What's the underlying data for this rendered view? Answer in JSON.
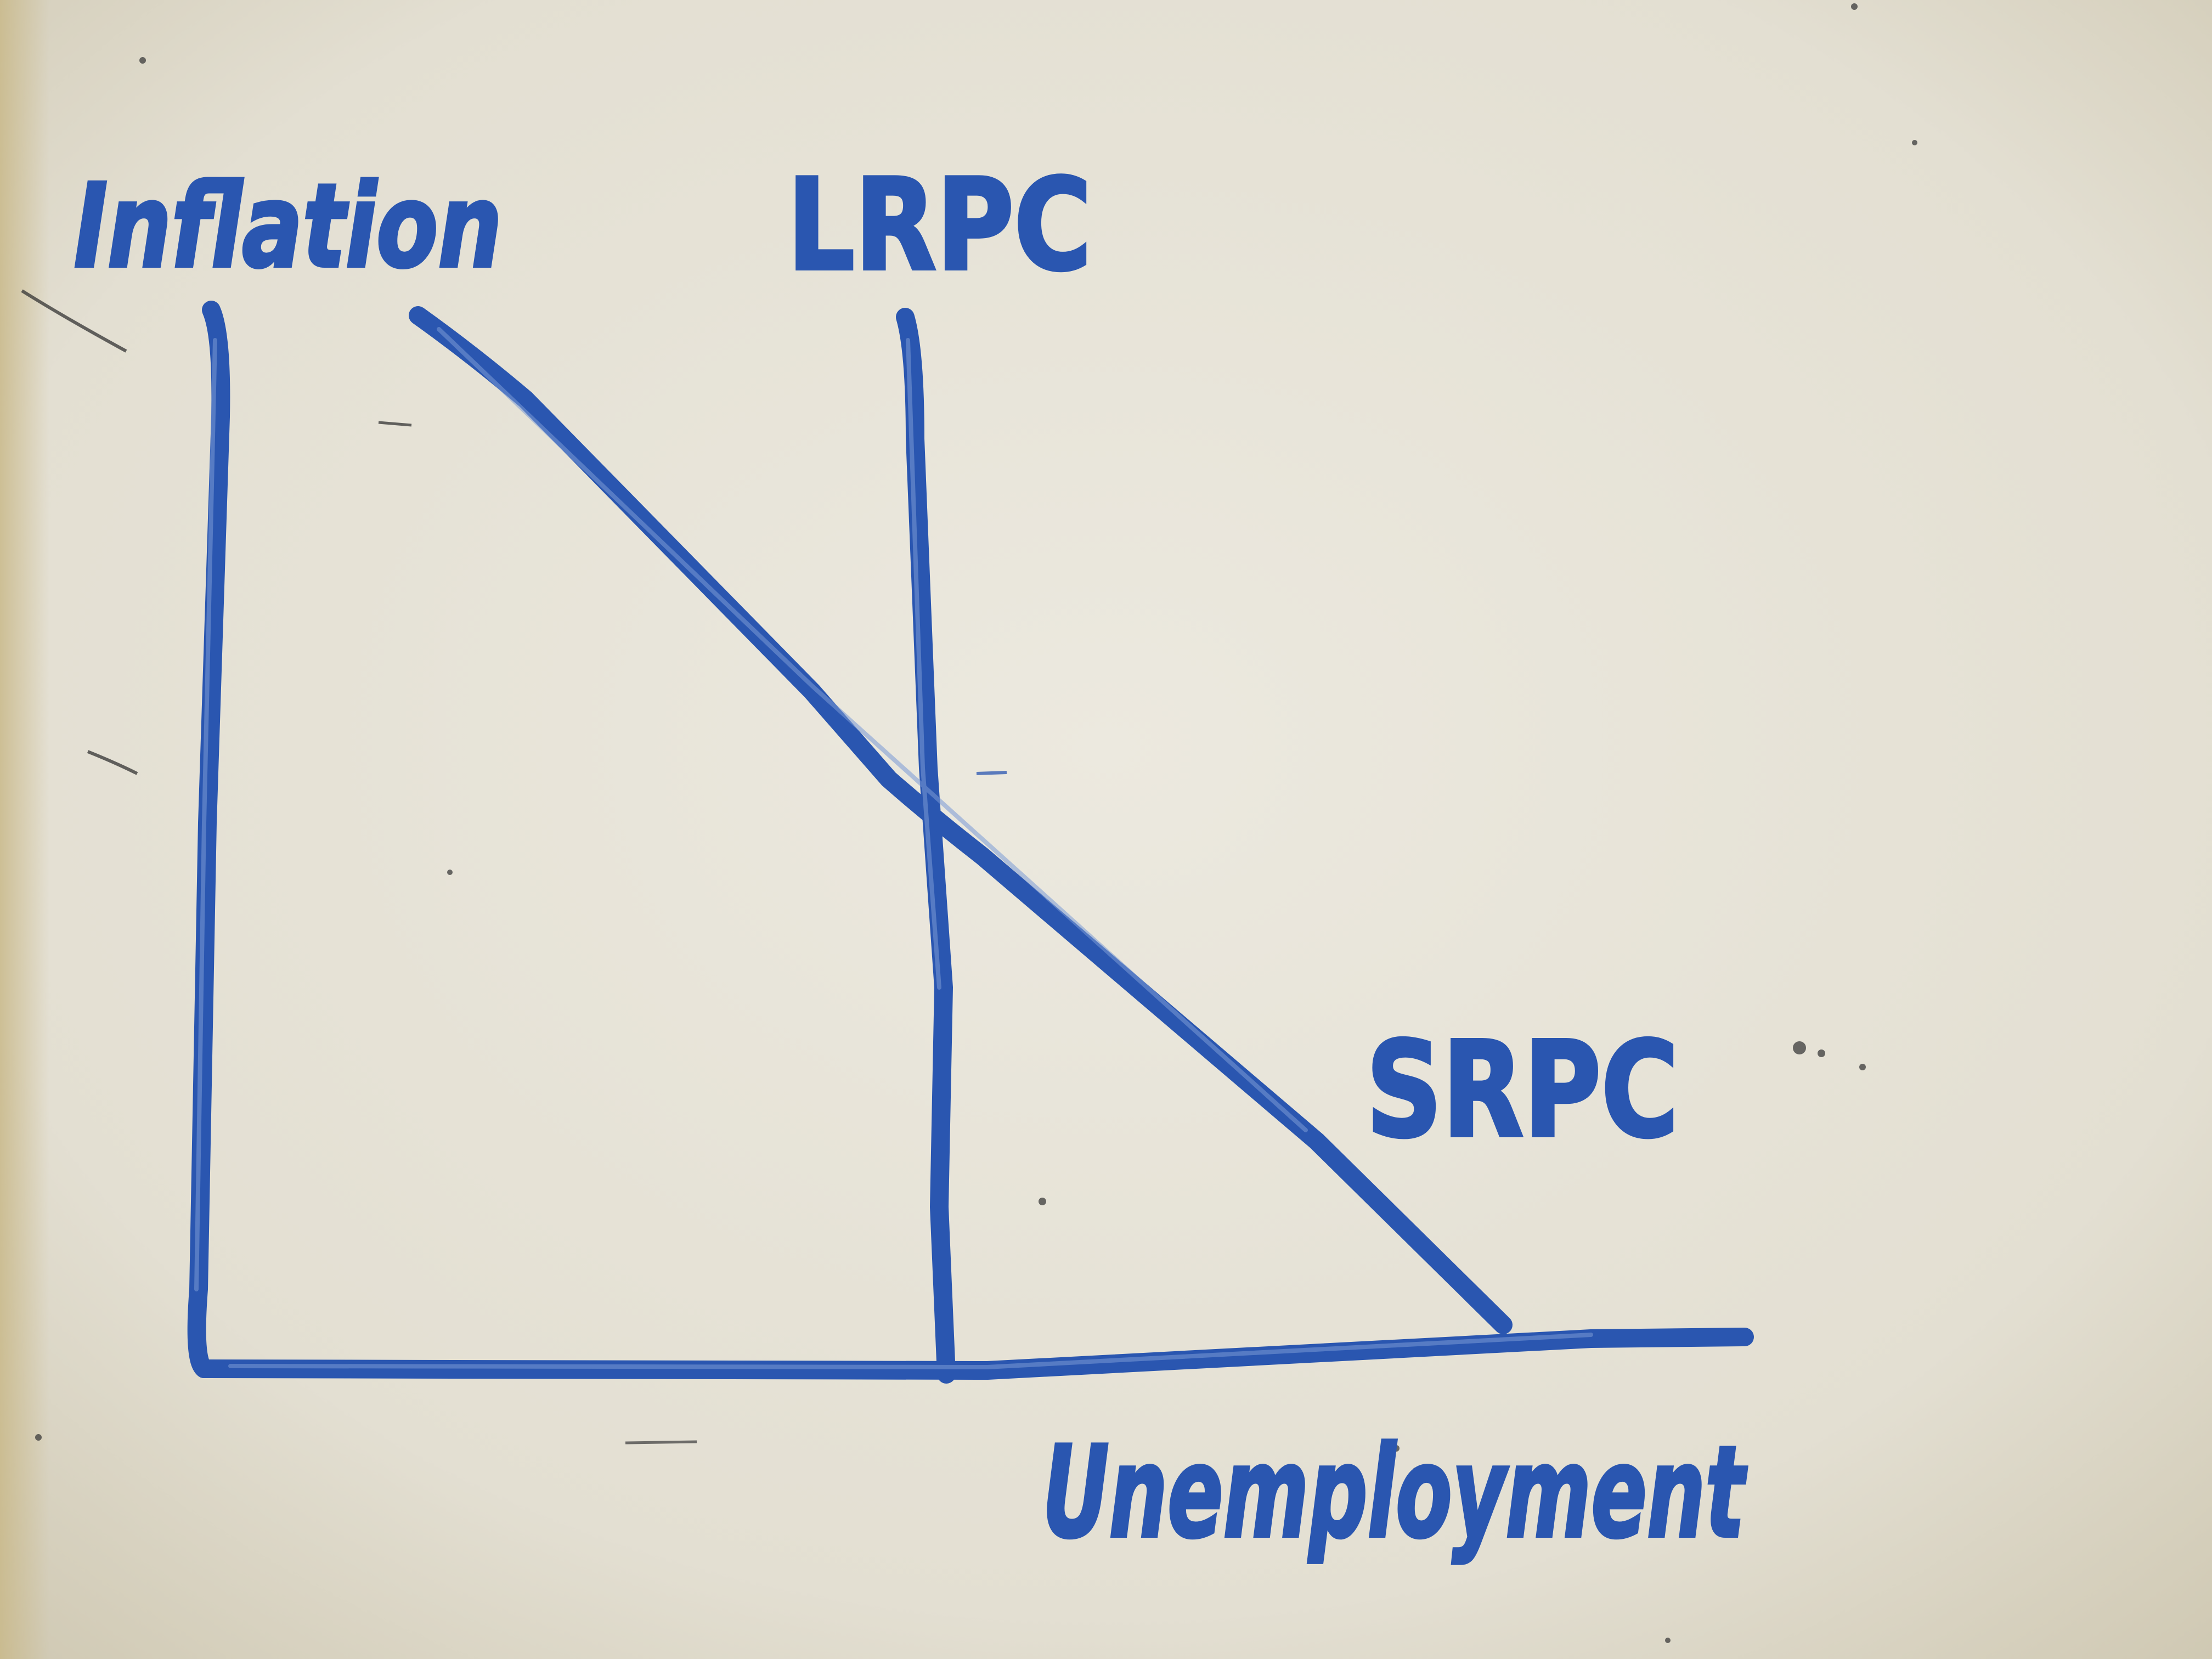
{
  "diagram": {
    "y_axis_label": "Inflation",
    "x_axis_label": "Unemployment",
    "curves": [
      {
        "id": "lrpc",
        "label": "LRPC"
      },
      {
        "id": "srpc",
        "label": "SRPC"
      }
    ]
  },
  "colors": {
    "board": "#e6e2d6",
    "ink": "#2a56b0"
  }
}
